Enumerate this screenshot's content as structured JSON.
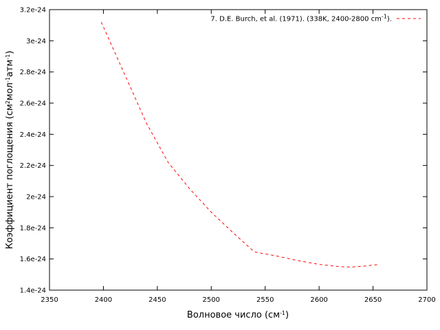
{
  "chart_data": {
    "type": "line",
    "title": "",
    "xlabel": {
      "base": "Волновое число (см",
      "sup": "-1",
      "tail": ")"
    },
    "ylabel": [
      {
        "t": "Коэффициент поглощения (см"
      },
      {
        "sup": "2"
      },
      {
        "t": "мол"
      },
      {
        "sup": "-1"
      },
      {
        "t": "атм"
      },
      {
        "sup": "-1"
      },
      {
        "t": ")"
      }
    ],
    "xlim": [
      2350,
      2700
    ],
    "ylim": [
      1.4e-24,
      3.2e-24
    ],
    "x_ticks": [
      {
        "v": 2350,
        "label": "2350"
      },
      {
        "v": 2400,
        "label": "2400"
      },
      {
        "v": 2450,
        "label": "2450"
      },
      {
        "v": 2500,
        "label": "2500"
      },
      {
        "v": 2550,
        "label": "2550"
      },
      {
        "v": 2600,
        "label": "2600"
      },
      {
        "v": 2650,
        "label": "2650"
      },
      {
        "v": 2700,
        "label": "2700"
      }
    ],
    "y_ticks": [
      {
        "v": 1.4e-24,
        "label": "1.4e-24"
      },
      {
        "v": 1.6e-24,
        "label": "1.6e-24"
      },
      {
        "v": 1.8e-24,
        "label": "1.8e-24"
      },
      {
        "v": 2e-24,
        "label": "2e-24"
      },
      {
        "v": 2.2e-24,
        "label": "2.2e-24"
      },
      {
        "v": 2.4e-24,
        "label": "2.4e-24"
      },
      {
        "v": 2.6e-24,
        "label": "2.6e-24"
      },
      {
        "v": 2.8e-24,
        "label": "2.8e-24"
      },
      {
        "v": 3e-24,
        "label": "3e-24"
      },
      {
        "v": 3.2e-24,
        "label": "3.2e-24"
      }
    ],
    "grid": false,
    "legend_position": "top-right",
    "series": [
      {
        "legend": {
          "base": "7. D.E. Burch, et al. (1971). (338K, 2400-2800 cm",
          "sup": "-1",
          "tail": ")."
        },
        "color": "#ff0000",
        "dash": "dashed",
        "x": [
          2398,
          2420,
          2440,
          2460,
          2480,
          2500,
          2520,
          2540,
          2560,
          2580,
          2600,
          2620,
          2630,
          2640,
          2656
        ],
        "y": [
          3.12e-24,
          2.78e-24,
          2.47e-24,
          2.22e-24,
          2.05e-24,
          1.9e-24,
          1.77e-24,
          1.645e-24,
          1.62e-24,
          1.59e-24,
          1.565e-24,
          1.55e-24,
          1.548e-24,
          1.553e-24,
          1.565e-24
        ]
      }
    ]
  }
}
